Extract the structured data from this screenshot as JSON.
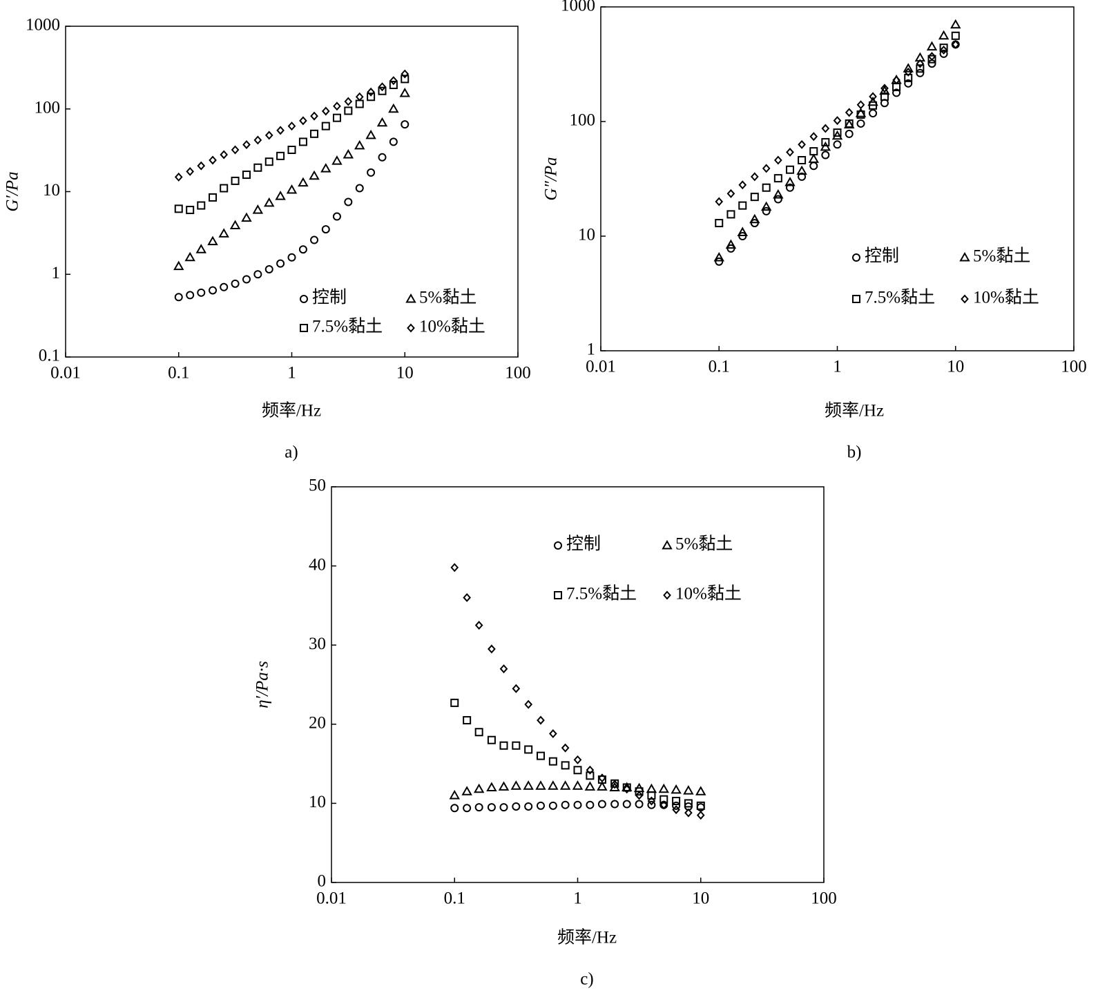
{
  "chart_data": [
    {
      "type": "scatter",
      "caption": "a)",
      "xlabel": "频率/Hz",
      "ylabel": "G′/Pa",
      "xscale": "log",
      "yscale": "log",
      "xlim": [
        0.01,
        100
      ],
      "ylim": [
        0.1,
        1000
      ],
      "xticks": [
        0.01,
        0.1,
        1,
        10,
        100
      ],
      "yticks": [
        0.1,
        1,
        10,
        100,
        1000
      ],
      "legend": "lower right",
      "x": [
        0.1,
        0.126,
        0.158,
        0.2,
        0.251,
        0.316,
        0.398,
        0.501,
        0.631,
        0.794,
        1,
        1.26,
        1.58,
        2,
        2.51,
        3.16,
        3.98,
        5.01,
        6.31,
        7.94,
        10
      ],
      "series": [
        {
          "name": "控制",
          "color": "#000000",
          "marker": "circle",
          "values": [
            0.53,
            0.56,
            0.6,
            0.64,
            0.7,
            0.77,
            0.87,
            1.0,
            1.15,
            1.35,
            1.6,
            2.0,
            2.6,
            3.5,
            5,
            7.5,
            11,
            17,
            26,
            40,
            65
          ]
        },
        {
          "name": "5%黏土",
          "color": "#000000",
          "marker": "triangle",
          "values": [
            1.25,
            1.6,
            2.0,
            2.5,
            3.1,
            3.9,
            4.8,
            6.0,
            7.3,
            8.8,
            10.5,
            12.8,
            15.5,
            19,
            23.5,
            28,
            36,
            48,
            68,
            100,
            155
          ]
        },
        {
          "name": "7.5%黏土",
          "color": "#000000",
          "marker": "square",
          "values": [
            6.2,
            6.0,
            6.8,
            8.5,
            11,
            13.5,
            16,
            19.5,
            23,
            27,
            32,
            40,
            50,
            62,
            78,
            95,
            115,
            140,
            165,
            195,
            230
          ]
        },
        {
          "name": "10%黏土",
          "color": "#000000",
          "marker": "diamond",
          "values": [
            15,
            17.5,
            20.5,
            24,
            28,
            32,
            37,
            42,
            48,
            55,
            62,
            72,
            82,
            94,
            108,
            123,
            140,
            160,
            185,
            220,
            265
          ]
        }
      ]
    },
    {
      "type": "scatter",
      "caption": "b)",
      "xlabel": "频率/Hz",
      "ylabel": "G″/Pa",
      "xscale": "log",
      "yscale": "log",
      "xlim": [
        0.01,
        100
      ],
      "ylim": [
        1,
        1000
      ],
      "xticks": [
        0.01,
        0.1,
        1,
        10,
        100
      ],
      "yticks": [
        1,
        10,
        100,
        1000
      ],
      "legend": "lower right",
      "x": [
        0.1,
        0.126,
        0.158,
        0.2,
        0.251,
        0.316,
        0.398,
        0.501,
        0.631,
        0.794,
        1,
        1.26,
        1.58,
        2,
        2.51,
        3.16,
        3.98,
        5.01,
        6.31,
        7.94,
        10
      ],
      "series": [
        {
          "name": "控制",
          "color": "#000000",
          "marker": "circle",
          "values": [
            6,
            7.8,
            10,
            13,
            16.5,
            21,
            26.5,
            33,
            41,
            51,
            63,
            78,
            96,
            118,
            145,
            178,
            215,
            265,
            320,
            390,
            470
          ]
        },
        {
          "name": "5%黏土",
          "color": "#000000",
          "marker": "triangle",
          "values": [
            6.5,
            8.4,
            10.8,
            14,
            18,
            23,
            29.5,
            37,
            47,
            60,
            75,
            94,
            118,
            148,
            185,
            230,
            290,
            360,
            450,
            560,
            700
          ]
        },
        {
          "name": "7.5%黏土",
          "color": "#000000",
          "marker": "square",
          "values": [
            13,
            15.5,
            18.5,
            22,
            26.5,
            32,
            38,
            46,
            55,
            66,
            80,
            96,
            115,
            138,
            165,
            200,
            240,
            290,
            350,
            440,
            560
          ]
        },
        {
          "name": "10%黏土",
          "color": "#000000",
          "marker": "diamond",
          "values": [
            20,
            23.5,
            28,
            33,
            39,
            46,
            54,
            63,
            74,
            87,
            102,
            120,
            140,
            165,
            195,
            230,
            270,
            320,
            370,
            420,
            470
          ]
        }
      ]
    },
    {
      "type": "scatter",
      "caption": "c)",
      "xlabel": "频率/Hz",
      "ylabel": "η′/Pa·s",
      "xscale": "log",
      "yscale": "linear",
      "xlim": [
        0.01,
        100
      ],
      "ylim": [
        0,
        50
      ],
      "xticks": [
        0.01,
        0.1,
        1,
        10,
        100
      ],
      "yticks": [
        0,
        10,
        20,
        30,
        40,
        50
      ],
      "legend": "upper right",
      "x": [
        0.1,
        0.126,
        0.158,
        0.2,
        0.251,
        0.316,
        0.398,
        0.501,
        0.631,
        0.794,
        1,
        1.26,
        1.58,
        2,
        2.51,
        3.16,
        3.98,
        5.01,
        6.31,
        7.94,
        10
      ],
      "series": [
        {
          "name": "控制",
          "color": "#000000",
          "marker": "circle",
          "values": [
            9.4,
            9.4,
            9.5,
            9.5,
            9.5,
            9.6,
            9.6,
            9.7,
            9.7,
            9.8,
            9.8,
            9.8,
            9.9,
            9.9,
            9.9,
            9.9,
            9.8,
            9.8,
            9.7,
            9.6,
            9.5
          ]
        },
        {
          "name": "5%黏土",
          "color": "#000000",
          "marker": "triangle",
          "values": [
            11,
            11.5,
            11.8,
            12,
            12.1,
            12.2,
            12.2,
            12.2,
            12.2,
            12.2,
            12.2,
            12.1,
            12.1,
            12,
            12,
            11.9,
            11.8,
            11.8,
            11.7,
            11.6,
            11.5
          ]
        },
        {
          "name": "7.5%黏土",
          "color": "#000000",
          "marker": "square",
          "values": [
            22.7,
            20.5,
            19,
            18,
            17.3,
            17.3,
            16.8,
            16,
            15.3,
            14.8,
            14.2,
            13.5,
            13,
            12.5,
            12,
            11.5,
            11,
            10.5,
            10.3,
            10,
            9.7
          ]
        },
        {
          "name": "10%黏土",
          "color": "#000000",
          "marker": "diamond",
          "values": [
            39.8,
            36,
            32.5,
            29.5,
            27,
            24.5,
            22.5,
            20.5,
            18.8,
            17,
            15.5,
            14.2,
            13.2,
            12.4,
            11.8,
            11,
            10.3,
            9.8,
            9.2,
            8.8,
            8.5
          ]
        }
      ]
    }
  ]
}
